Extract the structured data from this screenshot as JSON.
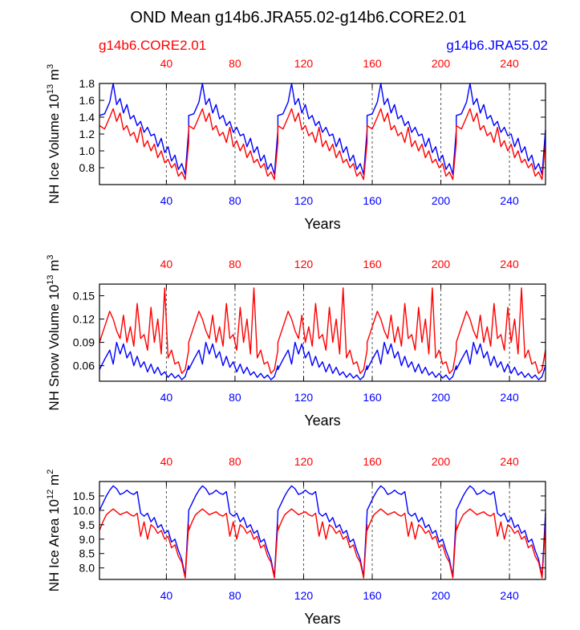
{
  "title": "OND Mean g14b6.JRA55.02-g14b6.CORE2.01",
  "legend": {
    "left": {
      "label": "g14b6.CORE2.01",
      "color": "#ff0000"
    },
    "right": {
      "label": "g14b6.JRA55.02",
      "color": "#0000ff"
    }
  },
  "colors": {
    "core": "#ff0000",
    "jra": "#0000ff",
    "axis": "#000000",
    "grid": "#555555"
  },
  "chart_data": [
    {
      "type": "line",
      "ylabel_base": "NH Ice Volume 10",
      "ylabel_exp": "13",
      "ylabel_unit": " m",
      "ylabel_unit_exp": "3",
      "xlabel": "Years",
      "top_ticks": [
        "40",
        "80",
        "120",
        "160",
        "200",
        "240"
      ],
      "bottom_ticks": [
        "40",
        "80",
        "120",
        "160",
        "200",
        "240"
      ],
      "tick_values": [
        40,
        80,
        120,
        160,
        200,
        240
      ],
      "xlim": [
        1,
        261
      ],
      "ylim": [
        0.6,
        1.8
      ],
      "yticks": [
        0.8,
        1.0,
        1.2,
        1.4,
        1.6,
        1.8
      ],
      "ytick_labels": [
        "0.8",
        "1.0",
        "1.2",
        "1.4",
        "1.6",
        "1.8"
      ],
      "cycle_length": 52,
      "series": [
        {
          "name": "g14b6.JRA55.02",
          "color": "#0000ff",
          "x": [
            1,
            4,
            7,
            9,
            11,
            13,
            15,
            17,
            19,
            21,
            23,
            25,
            27,
            29,
            31,
            33,
            35,
            37,
            39,
            41,
            43,
            45,
            47,
            49,
            51,
            53
          ],
          "values": [
            1.42,
            1.44,
            1.58,
            1.8,
            1.55,
            1.62,
            1.45,
            1.55,
            1.38,
            1.42,
            1.3,
            1.35,
            1.22,
            1.28,
            1.18,
            1.2,
            1.05,
            1.15,
            0.98,
            1.05,
            0.88,
            0.95,
            0.78,
            0.85,
            0.72,
            1.25
          ]
        },
        {
          "name": "g14b6.CORE2.01",
          "color": "#ff0000",
          "x": [
            1,
            4,
            7,
            9,
            11,
            13,
            15,
            17,
            19,
            21,
            23,
            25,
            27,
            29,
            31,
            33,
            35,
            37,
            39,
            41,
            43,
            45,
            47,
            49,
            51,
            53
          ],
          "values": [
            1.3,
            1.26,
            1.4,
            1.5,
            1.35,
            1.45,
            1.25,
            1.3,
            1.18,
            1.22,
            1.1,
            1.28,
            1.05,
            1.12,
            1.0,
            1.08,
            0.92,
            1.0,
            0.86,
            0.9,
            0.8,
            0.85,
            0.7,
            0.75,
            0.66,
            1.1
          ]
        }
      ]
    },
    {
      "type": "line",
      "ylabel_base": "NH Snow Volume 10",
      "ylabel_exp": "13",
      "ylabel_unit": " m",
      "ylabel_unit_exp": "3",
      "xlabel": "Years",
      "top_ticks": [
        "40",
        "80",
        "120",
        "160",
        "200",
        "240"
      ],
      "bottom_ticks": [
        "40",
        "80",
        "120",
        "160",
        "200",
        "240"
      ],
      "tick_values": [
        40,
        80,
        120,
        160,
        200,
        240
      ],
      "xlim": [
        1,
        261
      ],
      "ylim": [
        0.04,
        0.165
      ],
      "yticks": [
        0.06,
        0.09,
        0.12,
        0.15
      ],
      "ytick_labels": [
        "0.06",
        "0.09",
        "0.12",
        "0.15"
      ],
      "cycle_length": 52,
      "series": [
        {
          "name": "g14b6.JRA55.02",
          "color": "#0000ff",
          "x": [
            1,
            4,
            7,
            9,
            11,
            13,
            15,
            17,
            19,
            21,
            23,
            25,
            27,
            29,
            31,
            33,
            35,
            37,
            39,
            41,
            43,
            45,
            47,
            49,
            51,
            53
          ],
          "values": [
            0.055,
            0.068,
            0.08,
            0.062,
            0.09,
            0.075,
            0.088,
            0.07,
            0.078,
            0.06,
            0.072,
            0.058,
            0.065,
            0.052,
            0.062,
            0.05,
            0.058,
            0.048,
            0.052,
            0.045,
            0.05,
            0.044,
            0.048,
            0.042,
            0.046,
            0.06
          ]
        },
        {
          "name": "g14b6.CORE2.01",
          "color": "#ff0000",
          "x": [
            1,
            4,
            7,
            9,
            11,
            13,
            15,
            17,
            19,
            21,
            23,
            25,
            27,
            29,
            31,
            33,
            35,
            37,
            39,
            41,
            43,
            45,
            47,
            49,
            51,
            53
          ],
          "values": [
            0.09,
            0.11,
            0.13,
            0.12,
            0.105,
            0.095,
            0.125,
            0.09,
            0.11,
            0.085,
            0.14,
            0.095,
            0.1,
            0.08,
            0.135,
            0.09,
            0.12,
            0.075,
            0.16,
            0.07,
            0.08,
            0.062,
            0.065,
            0.05,
            0.055,
            0.08
          ]
        }
      ]
    },
    {
      "type": "line",
      "ylabel_base": "NH Ice Area 10",
      "ylabel_exp": "12",
      "ylabel_unit": " m",
      "ylabel_unit_exp": "2",
      "xlabel": "Years",
      "top_ticks": [
        "40",
        "80",
        "120",
        "160",
        "200",
        "240"
      ],
      "bottom_ticks": [
        "40",
        "80",
        "120",
        "160",
        "200",
        "240"
      ],
      "tick_values": [
        40,
        80,
        120,
        160,
        200,
        240
      ],
      "xlim": [
        1,
        261
      ],
      "ylim": [
        7.6,
        11.0
      ],
      "yticks": [
        8.0,
        8.5,
        9.0,
        9.5,
        10.0,
        10.5
      ],
      "ytick_labels": [
        "8.0",
        "8.5",
        "9.0",
        "9.5",
        "10.0",
        "10.5"
      ],
      "cycle_length": 52,
      "series": [
        {
          "name": "g14b6.JRA55.02",
          "color": "#0000ff",
          "x": [
            1,
            3,
            5,
            7,
            9,
            11,
            13,
            15,
            17,
            19,
            21,
            23,
            25,
            27,
            29,
            31,
            33,
            35,
            37,
            39,
            41,
            43,
            45,
            47,
            49,
            51,
            53
          ],
          "values": [
            10.0,
            10.25,
            10.5,
            10.7,
            10.85,
            10.75,
            10.55,
            10.6,
            10.7,
            10.6,
            10.55,
            10.65,
            9.9,
            9.8,
            9.9,
            9.6,
            9.75,
            9.4,
            9.5,
            9.2,
            9.3,
            8.9,
            9.0,
            8.6,
            8.3,
            7.7,
            9.9
          ]
        },
        {
          "name": "g14b6.CORE2.01",
          "color": "#ff0000",
          "x": [
            1,
            3,
            5,
            7,
            9,
            11,
            13,
            15,
            17,
            19,
            21,
            23,
            25,
            27,
            29,
            31,
            33,
            35,
            37,
            39,
            41,
            43,
            45,
            47,
            49,
            51,
            53
          ],
          "values": [
            9.3,
            9.6,
            9.85,
            9.95,
            10.05,
            9.95,
            9.85,
            9.9,
            9.95,
            9.85,
            9.8,
            9.9,
            9.1,
            9.6,
            9.0,
            9.5,
            9.4,
            9.2,
            9.3,
            9.0,
            9.1,
            8.7,
            8.8,
            8.4,
            8.2,
            7.65,
            9.5
          ]
        }
      ]
    }
  ]
}
